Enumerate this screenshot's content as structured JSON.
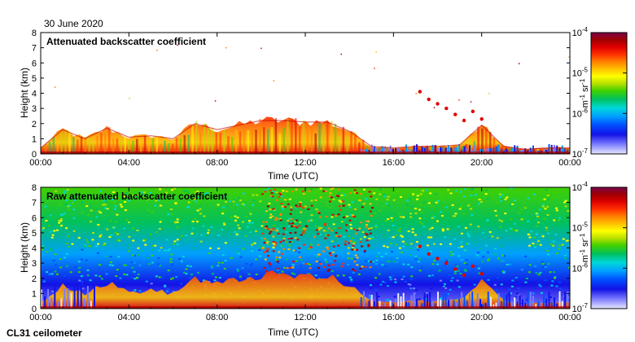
{
  "date": "30 June 2020",
  "footer": "CL31 ceilometer",
  "colors": {
    "scale": [
      "#e8e8ff",
      "#7b7bff",
      "#1212e6",
      "#0050ff",
      "#00a0ff",
      "#00d8d8",
      "#00c060",
      "#40d000",
      "#b8e000",
      "#ffff00",
      "#ffc000",
      "#ff8000",
      "#ff3000",
      "#e00000",
      "#a00000",
      "#7a0048"
    ]
  },
  "chart_data": [
    {
      "type": "heatmap",
      "title": "Attenuated backscatter coefficient",
      "xlabel": "Time (UTC)",
      "ylabel": "Height (km)",
      "x_ticks": [
        "00:00",
        "04:00",
        "08:00",
        "12:00",
        "16:00",
        "20:00",
        "00:00"
      ],
      "y_ticks": [
        "0",
        "1",
        "2",
        "3",
        "4",
        "5",
        "6",
        "7",
        "8"
      ],
      "ylim": [
        0,
        8
      ],
      "xlim_hours": [
        0,
        24
      ],
      "colorbar": {
        "scale": "log",
        "range": [
          1e-07,
          0.0001
        ],
        "tick_bases": [
          "10",
          "10",
          "10",
          "10"
        ],
        "tick_exponents": [
          "-4",
          "-5",
          "-6",
          "-7"
        ],
        "unit": "m",
        "unit_exp": "-1",
        "unit2": "sr",
        "unit2_exp": "-1"
      },
      "boundary_layer_top_km": [
        {
          "h": 0,
          "z": 0.4
        },
        {
          "h": 1,
          "z": 1.6
        },
        {
          "h": 2,
          "z": 1.0
        },
        {
          "h": 3,
          "z": 1.7
        },
        {
          "h": 4,
          "z": 1.1
        },
        {
          "h": 5,
          "z": 1.2
        },
        {
          "h": 6,
          "z": 1.0
        },
        {
          "h": 7,
          "z": 2.0
        },
        {
          "h": 8,
          "z": 1.6
        },
        {
          "h": 9,
          "z": 1.9
        },
        {
          "h": 10,
          "z": 2.2
        },
        {
          "h": 11,
          "z": 2.2
        },
        {
          "h": 12,
          "z": 2.1
        },
        {
          "h": 13,
          "z": 2.1
        },
        {
          "h": 14,
          "z": 1.5
        },
        {
          "h": 15,
          "z": 0.5
        },
        {
          "h": 16,
          "z": 0.4
        },
        {
          "h": 17,
          "z": 0.5
        },
        {
          "h": 18,
          "z": 0.5
        },
        {
          "h": 19,
          "z": 0.6
        },
        {
          "h": 20,
          "z": 1.9
        },
        {
          "h": 21,
          "z": 0.5
        },
        {
          "h": 22,
          "z": 0.3
        },
        {
          "h": 23,
          "z": 0.4
        },
        {
          "h": 24,
          "z": 0.4
        }
      ],
      "cloud_layer_km": [
        {
          "h": 17.2,
          "z": 4.1
        },
        {
          "h": 17.6,
          "z": 3.6
        },
        {
          "h": 18.0,
          "z": 3.3
        },
        {
          "h": 18.4,
          "z": 3.0
        },
        {
          "h": 18.8,
          "z": 2.6
        },
        {
          "h": 19.2,
          "z": 2.2
        },
        {
          "h": 19.6,
          "z": 2.8
        },
        {
          "h": 20.0,
          "z": 2.3
        }
      ]
    },
    {
      "type": "heatmap",
      "title": "Raw attenuated backscatter coefficient",
      "xlabel": "Time (UTC)",
      "ylabel": "Height (km)",
      "x_ticks": [
        "00:00",
        "04:00",
        "08:00",
        "12:00",
        "16:00",
        "20:00",
        "00:00"
      ],
      "y_ticks": [
        "0",
        "1",
        "2",
        "3",
        "4",
        "5",
        "6",
        "7",
        "8"
      ],
      "ylim": [
        0,
        8
      ],
      "xlim_hours": [
        0,
        24
      ],
      "colorbar": {
        "scale": "log",
        "range": [
          1e-07,
          0.0001
        ],
        "tick_bases": [
          "10",
          "10",
          "10",
          "10"
        ],
        "tick_exponents": [
          "-4",
          "-5",
          "-6",
          "-7"
        ],
        "unit": "m",
        "unit_exp": "-1",
        "unit2": "sr",
        "unit2_exp": "-1"
      }
    }
  ]
}
